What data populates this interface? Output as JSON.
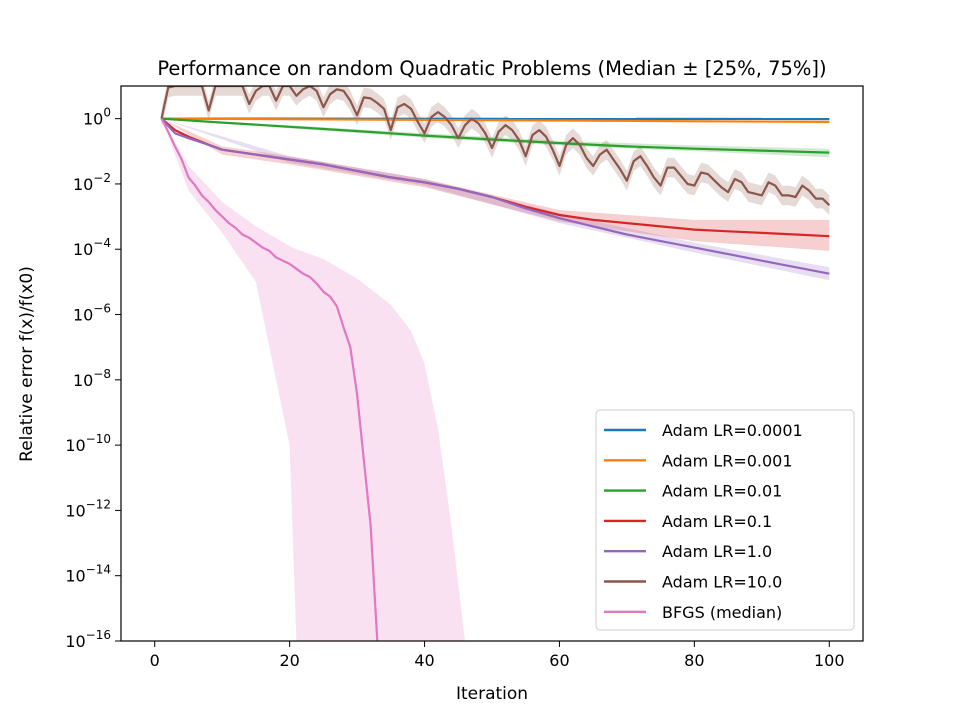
{
  "chart_data": {
    "type": "line",
    "title": "Performance on random Quadratic Problems (Median ± [25%, 75%])",
    "xlabel": "Iteration",
    "ylabel": "Relative error f(x)/f(x0)",
    "xlim": [
      -5,
      105
    ],
    "xticks": [
      0,
      20,
      40,
      60,
      80,
      100
    ],
    "y_scale": "log",
    "ylim_exponent": [
      -16,
      1
    ],
    "yticks_exponent": [
      0,
      -2,
      -4,
      -6,
      -8,
      -10,
      -12,
      -14,
      -16
    ],
    "ytick_labels": [
      "10",
      "10",
      "10",
      "10",
      "10",
      "10",
      "10",
      "10",
      "10"
    ],
    "ytick_exponent_labels": [
      "0",
      "−2",
      "−4",
      "−6",
      "−8",
      "−10",
      "−12",
      "−14",
      "−16"
    ],
    "legend_position": "lower right",
    "grid": false,
    "series": [
      {
        "name": "Adam LR=0.0001",
        "color": "#1f77b4",
        "x": [
          1,
          100
        ],
        "log10_y": [
          0.0,
          -0.01
        ],
        "log10_band": {
          "x": [
            1,
            100
          ],
          "low": [
            0.0,
            -0.02
          ],
          "high": [
            0.0,
            0.0
          ]
        }
      },
      {
        "name": "Adam LR=0.001",
        "color": "#ff7f0e",
        "x": [
          1,
          100
        ],
        "log10_y": [
          0.0,
          -0.1
        ],
        "log10_band": {
          "x": [
            1,
            100
          ],
          "low": [
            0.0,
            -0.14
          ],
          "high": [
            0.0,
            -0.07
          ]
        }
      },
      {
        "name": "Adam LR=0.01",
        "color": "#2ca02c",
        "x": [
          1,
          10,
          20,
          30,
          40,
          50,
          60,
          70,
          80,
          90,
          100
        ],
        "log10_y": [
          0.0,
          -0.12,
          -0.25,
          -0.38,
          -0.52,
          -0.64,
          -0.75,
          -0.85,
          -0.92,
          -0.98,
          -1.04
        ],
        "log10_band": {
          "x": [
            1,
            20,
            40,
            60,
            80,
            100
          ],
          "low": [
            0.0,
            -0.3,
            -0.58,
            -0.82,
            -1.0,
            -1.18
          ],
          "high": [
            0.0,
            -0.2,
            -0.45,
            -0.68,
            -0.82,
            -0.92
          ]
        }
      },
      {
        "name": "Adam LR=0.1",
        "color": "#d62728",
        "x": [
          1,
          3,
          5,
          8,
          10,
          15,
          20,
          25,
          30,
          35,
          40,
          45,
          50,
          55,
          60,
          65,
          70,
          75,
          80,
          85,
          90,
          95,
          100
        ],
        "log10_y": [
          0.0,
          -0.35,
          -0.55,
          -0.8,
          -0.95,
          -1.1,
          -1.25,
          -1.4,
          -1.6,
          -1.8,
          -1.95,
          -2.15,
          -2.4,
          -2.7,
          -2.95,
          -3.1,
          -3.2,
          -3.3,
          -3.4,
          -3.45,
          -3.5,
          -3.55,
          -3.6
        ],
        "log10_band": {
          "x": [
            1,
            10,
            20,
            40,
            60,
            80,
            100
          ],
          "low": [
            0.0,
            -1.1,
            -1.4,
            -2.1,
            -3.15,
            -3.75,
            -4.05
          ],
          "high": [
            0.0,
            -0.85,
            -1.15,
            -1.85,
            -2.8,
            -3.1,
            -3.1
          ]
        }
      },
      {
        "name": "Adam LR=1.0",
        "color": "#9467bd",
        "x": [
          1,
          3,
          5,
          8,
          10,
          15,
          20,
          25,
          30,
          35,
          40,
          45,
          50,
          55,
          60,
          65,
          70,
          75,
          80,
          85,
          90,
          95,
          100
        ],
        "log10_y": [
          0.0,
          -0.45,
          -0.6,
          -0.8,
          -0.95,
          -1.1,
          -1.25,
          -1.4,
          -1.6,
          -1.8,
          -1.95,
          -2.15,
          -2.4,
          -2.75,
          -3.05,
          -3.3,
          -3.55,
          -3.75,
          -3.95,
          -4.15,
          -4.35,
          -4.55,
          -4.75
        ],
        "log10_band": {
          "x": [
            1,
            20,
            40,
            60,
            80,
            100
          ],
          "low": [
            0.0,
            -1.35,
            -2.05,
            -3.2,
            -4.1,
            -4.95
          ],
          "high": [
            0.0,
            -1.15,
            -1.85,
            -2.9,
            -3.8,
            -4.55
          ]
        }
      },
      {
        "name": "Adam LR=10.0",
        "color": "#8c564b",
        "x": [
          1,
          2,
          3,
          4,
          5,
          6,
          7,
          8,
          9,
          10,
          11,
          12,
          13,
          14,
          15,
          16,
          17,
          18,
          19,
          20,
          21,
          22,
          23,
          24,
          25,
          26,
          27,
          28,
          29,
          30,
          31,
          32,
          33,
          34,
          35,
          36,
          37,
          38,
          39,
          40,
          41,
          42,
          43,
          44,
          45,
          46,
          47,
          48,
          49,
          50,
          51,
          52,
          53,
          54,
          55,
          56,
          57,
          58,
          59,
          60,
          61,
          62,
          63,
          64,
          65,
          66,
          67,
          68,
          69,
          70,
          71,
          72,
          73,
          74,
          75,
          76,
          77,
          78,
          79,
          80,
          81,
          82,
          83,
          84,
          85,
          86,
          87,
          88,
          89,
          90,
          91,
          92,
          93,
          94,
          95,
          96,
          97,
          98,
          99,
          100
        ],
        "log10_y": [
          0.0,
          0.95,
          1.0,
          1.0,
          1.0,
          1.0,
          1.0,
          0.25,
          1.0,
          1.0,
          1.0,
          1.0,
          1.0,
          0.45,
          0.85,
          1.0,
          1.0,
          0.55,
          1.0,
          1.0,
          0.7,
          0.9,
          1.0,
          0.85,
          0.35,
          0.75,
          0.9,
          0.85,
          0.55,
          0.1,
          0.65,
          0.62,
          0.48,
          0.3,
          -0.35,
          0.35,
          0.45,
          0.3,
          -0.1,
          -0.45,
          0.05,
          0.2,
          0.05,
          -0.2,
          -0.6,
          -0.2,
          0.0,
          -0.15,
          -0.45,
          -0.9,
          -0.4,
          -0.2,
          -0.35,
          -0.65,
          -1.15,
          -0.5,
          -0.35,
          -0.55,
          -0.95,
          -1.45,
          -0.8,
          -0.6,
          -0.8,
          -1.2,
          -1.45,
          -1.1,
          -0.95,
          -1.25,
          -1.55,
          -1.9,
          -1.3,
          -1.15,
          -1.45,
          -1.8,
          -2.05,
          -1.5,
          -1.5,
          -1.75,
          -2.0,
          -2.05,
          -1.65,
          -1.7,
          -1.9,
          -2.1,
          -2.25,
          -1.85,
          -1.95,
          -2.25,
          -2.3,
          -2.35,
          -1.95,
          -2.05,
          -2.35,
          -2.35,
          -2.4,
          -2.05,
          -2.2,
          -2.45,
          -2.45,
          -2.65
        ],
        "log10_band_halfwidth": 0.3
      },
      {
        "name": "BFGS (median)",
        "color": "#e377c2",
        "x": [
          1,
          2,
          3,
          4,
          5,
          6,
          7,
          8,
          9,
          10,
          11,
          12,
          13,
          14,
          15,
          16,
          17,
          18,
          19,
          20,
          21,
          22,
          23,
          24,
          25,
          26,
          27,
          28,
          29,
          30,
          31,
          32,
          33
        ],
        "log10_y": [
          0.0,
          -0.4,
          -0.85,
          -1.25,
          -1.8,
          -2.05,
          -2.35,
          -2.55,
          -2.8,
          -3.0,
          -3.2,
          -3.35,
          -3.55,
          -3.65,
          -3.8,
          -3.95,
          -4.05,
          -4.25,
          -4.35,
          -4.45,
          -4.6,
          -4.75,
          -4.85,
          -5.05,
          -5.3,
          -5.45,
          -5.75,
          -6.4,
          -7.0,
          -8.45,
          -10.45,
          -12.45,
          -16.0
        ],
        "log10_band": {
          "x": [
            1,
            5,
            10,
            15,
            20,
            21,
            25,
            30,
            35,
            38,
            40,
            42,
            44,
            46
          ],
          "low": [
            0.0,
            -2.2,
            -3.5,
            -5.0,
            -10.0,
            -16.0,
            -16.0,
            -16.0,
            -16.0,
            -16.0,
            -16.0,
            -16.0,
            -16.0,
            -16.0
          ],
          "high": [
            0.0,
            -1.45,
            -2.55,
            -3.3,
            -3.9,
            -4.0,
            -4.3,
            -4.9,
            -5.7,
            -6.5,
            -7.5,
            -9.5,
            -12.5,
            -16.0
          ]
        }
      }
    ]
  }
}
